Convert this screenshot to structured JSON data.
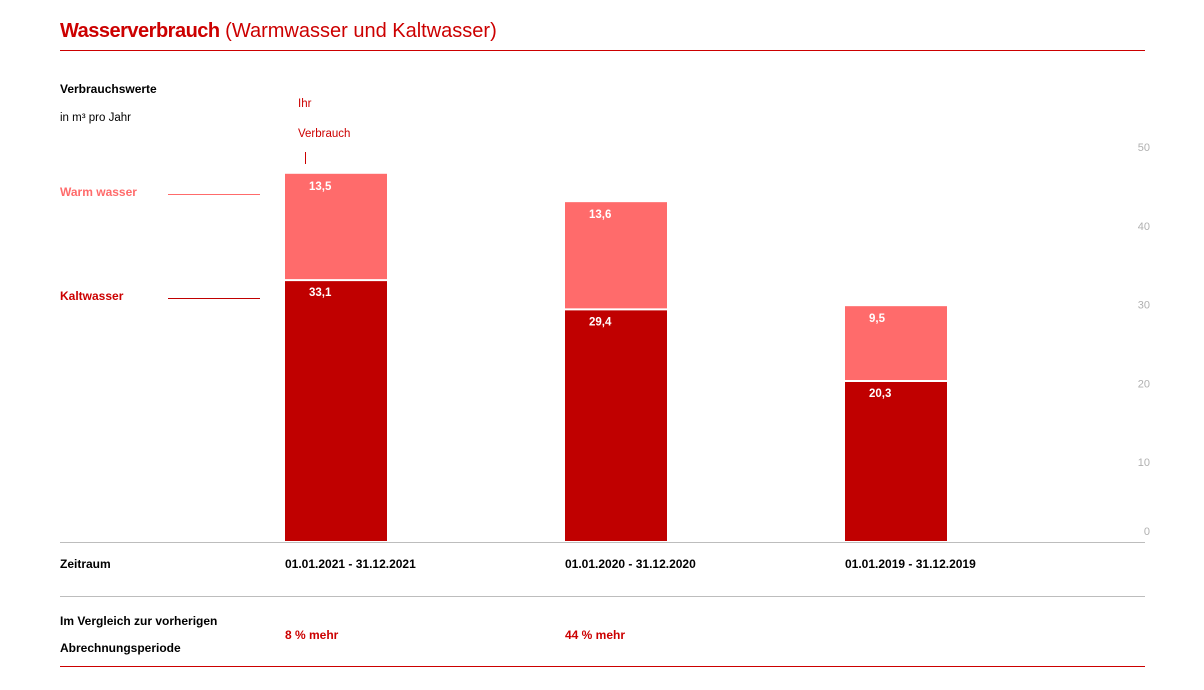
{
  "title": {
    "bold": "Wasserverbrauch",
    "sub": " (Warmwasser und Kaltwasser)"
  },
  "header": {
    "label": "Verbrauchswerte",
    "unit": "in m³ pro Jahr"
  },
  "marker": {
    "line1": "Ihr",
    "line2": "Verbrauch"
  },
  "legend": {
    "warm": "Warm wasser",
    "cold": "Kaltwasser"
  },
  "colors": {
    "accent": "#cc0000",
    "warm": "#ff6b6b",
    "cold": "#c00000"
  },
  "chart_data": {
    "type": "bar",
    "stacked": true,
    "categories": [
      "01.01.2021 - 31.12.2021",
      "01.01.2020 - 31.12.2020",
      "01.01.2019 - 31.12.2019"
    ],
    "series": [
      {
        "name": "Kaltwasser",
        "values": [
          33.1,
          29.4,
          20.3
        ],
        "labels": [
          "33,1",
          "29,4",
          "20,3"
        ]
      },
      {
        "name": "Warm wasser",
        "values": [
          13.5,
          13.6,
          9.5
        ],
        "labels": [
          "13,5",
          "13,6",
          "9,5"
        ]
      }
    ],
    "ylim": [
      0,
      50
    ],
    "yticks": [
      "0",
      "10",
      "20",
      "30",
      "40",
      "50"
    ],
    "axis_position": "right",
    "grid": false
  },
  "table": {
    "period_label": "Zeitraum",
    "compare_label_1": "Im Vergleich zur vorherigen",
    "compare_label_2": "Abrechnungsperiode",
    "compare_values": [
      "8 % mehr",
      "44 % mehr",
      ""
    ]
  }
}
